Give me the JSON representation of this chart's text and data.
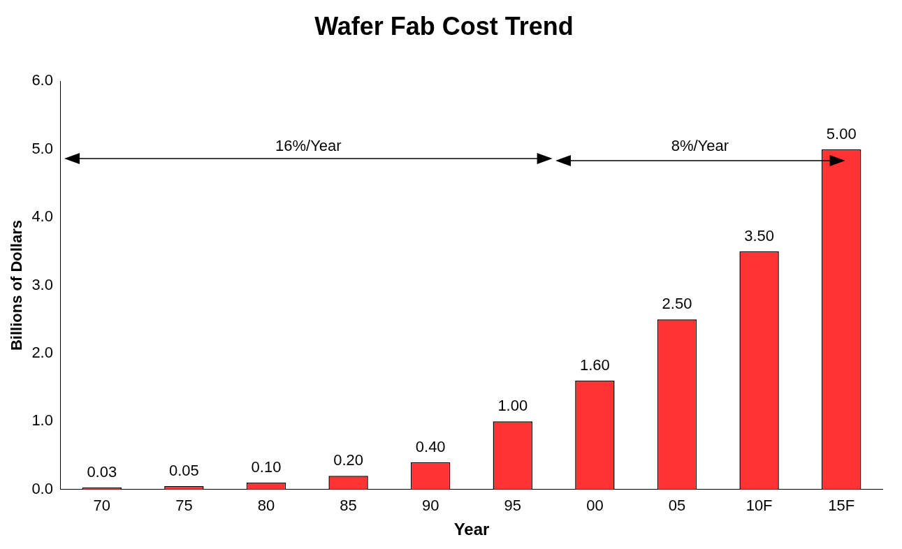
{
  "chart_data": {
    "type": "bar",
    "title": "Wafer Fab Cost Trend",
    "xlabel": "Year",
    "ylabel": "Billions of Dollars",
    "categories": [
      "70",
      "75",
      "80",
      "85",
      "90",
      "95",
      "00",
      "05",
      "10F",
      "15F"
    ],
    "values": [
      0.03,
      0.05,
      0.1,
      0.2,
      0.4,
      1.0,
      1.6,
      2.5,
      3.5,
      5.0
    ],
    "value_labels": [
      "0.03",
      "0.05",
      "0.10",
      "0.20",
      "0.40",
      "1.00",
      "1.60",
      "2.50",
      "3.50",
      "5.00"
    ],
    "color": "#ff3333",
    "ylim": [
      0,
      6
    ],
    "yticks": [
      {
        "value": 0,
        "label": "0.0"
      },
      {
        "value": 1,
        "label": "1.0"
      },
      {
        "value": 2,
        "label": "2.0"
      },
      {
        "value": 3,
        "label": "3.0"
      },
      {
        "value": 4,
        "label": "4.0"
      },
      {
        "value": 5,
        "label": "5.0"
      },
      {
        "value": 6,
        "label": "6.0"
      }
    ],
    "grid": false,
    "legend": false,
    "annotations": [
      "16%/Year",
      "8%/Year"
    ]
  }
}
